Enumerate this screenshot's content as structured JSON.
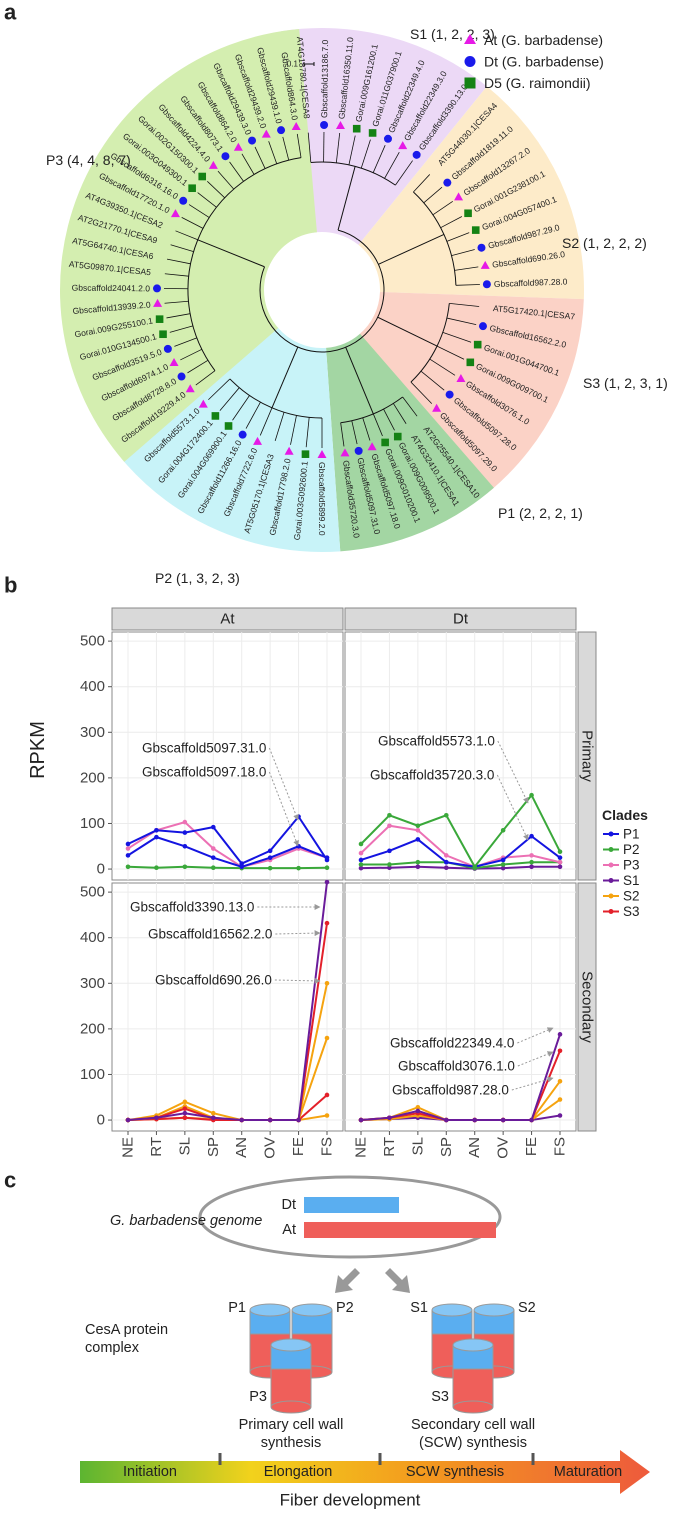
{
  "panel_labels": [
    "a",
    "b",
    "c"
  ],
  "tree": {
    "scale": "0.1",
    "legend": [
      {
        "label": "At (G. barbadense)",
        "color": "#e619e6",
        "shape": "triangle"
      },
      {
        "label": "Dt (G. barbadense)",
        "color": "#1a1aeb",
        "shape": "circle"
      },
      {
        "label": "D5 (G. raimondii)",
        "color": "#148214",
        "shape": "square"
      }
    ],
    "clades": [
      {
        "label": "S1 (1, 2, 2, 3)",
        "color": "#ecd9f6",
        "leaves": [
          "AT4G18780.1|CESA8",
          "Gbscaffold13186.7.0",
          "Gbscaffold16350.11.0",
          "Gorai.009G161200.1",
          "Gorai.011G037900.1",
          "Gbscaffold22349.4.0",
          "Gbscaffold22349.3.0",
          "Gbscaffold3390.13.0"
        ]
      },
      {
        "label": "S2 (1, 2, 2, 2)",
        "color": "#fdebc9",
        "leaves": [
          "AT5G44030.1|CESA4",
          "Gbscaffold1819.11.0",
          "Gbscaffold13267.2.0",
          "Gorai.001G238100.1",
          "Gorai.004G057400.1",
          "Gbscaffold987.29.0",
          "Gbscaffold690.26.0",
          "Gbscaffold987.28.0"
        ]
      },
      {
        "label": "S3 (1, 2, 3, 1)",
        "color": "#fbd2c6",
        "leaves": [
          "AT5G17420.1|CESA7",
          "Gbscaffold16562.2.0",
          "Gorai.001G044700.1",
          "Gorai.009G009700.1",
          "Gbscaffold3076.1.0",
          "Gbscaffold5097.28.0",
          "Gbscaffold5097.29.0"
        ]
      },
      {
        "label": "P1 (2, 2, 2, 1)",
        "color": "#a3d6a3",
        "leaves": [
          "AT2G25540.1|CESA10",
          "AT4G32410.1|CESA1",
          "Gorai.009G009500.1",
          "Gorai.009G010200.1",
          "Gbscaffold5097.18.0",
          "Gbscaffold5097.31.0",
          "Gbscaffold35720.3.0"
        ]
      },
      {
        "label": "P2 (1, 3, 2, 3)",
        "color": "#c8f3f8",
        "leaves": [
          "Gbscaffold5899.2.0",
          "Gorai.003G092600.1",
          "Gbscaffold17798.2.0",
          "AT5G05170.1|CESA3",
          "Gbscaffold7722.6.0",
          "Gbscaffold11266.16.0",
          "Gorai.004G069900.1",
          "Gorai.004G172400.1",
          "Gbscaffold5573.1.0"
        ]
      },
      {
        "label": "P3 (4, 4, 8, 7)",
        "color": "#d4eeb0",
        "leaves": [
          "Gbscaffold19229.4.0",
          "Gbscaffold8728.8.0",
          "Gbscaffold6974.1.0",
          "Gbscaffold3519.5.0",
          "Gorai.010G134500.1",
          "Gorai.009G255100.1",
          "Gbscaffold13939.2.0",
          "Gbscaffold24041.2.0",
          "AT5G09870.1|CESA5",
          "AT5G64740.1|CESA6",
          "AT2G21770.1|CESA9",
          "AT4G39350.1|CESA2",
          "Gbscaffold17720.1.0",
          "Gbscaffold6316.16.0",
          "Gorai.003G049300.1",
          "Gorai.002G150300.1",
          "Gbscaffold4224.4.0",
          "Gbscaffold8073.1",
          "Gbscaffold864.2.0",
          "Gbscaffold29439.3.0",
          "Gbscaffold29439.2.0",
          "Gbscaffold29439.1.0",
          "Gbscaffold864.3.0"
        ]
      }
    ]
  },
  "chart_data": {
    "type": "line",
    "y_label": "RPKM",
    "columns": [
      "At",
      "Dt"
    ],
    "rows": [
      "Primary",
      "Secondary"
    ],
    "categories": [
      "NE",
      "RT",
      "SL",
      "SP",
      "AN",
      "OV",
      "FE",
      "FS"
    ],
    "ylim": [
      -24,
      520
    ],
    "yticks": [
      0,
      100,
      200,
      300,
      400,
      500
    ],
    "grid": true,
    "legend": {
      "title": "Clades",
      "position": "right",
      "items": [
        {
          "name": "P1",
          "color": "#1414e0"
        },
        {
          "name": "P2",
          "color": "#3aa83a"
        },
        {
          "name": "P3",
          "color": "#ec70b4"
        },
        {
          "name": "S1",
          "color": "#6a1b9a"
        },
        {
          "name": "S2",
          "color": "#f5a30f"
        },
        {
          "name": "S3",
          "color": "#e3202a"
        }
      ]
    },
    "facets": [
      {
        "series": [
          {
            "color": "#3aa83a",
            "values": [
              5,
              3,
              5,
              3,
              2,
              2,
              2,
              3
            ]
          },
          {
            "color": "#ec70b4",
            "values": [
              45,
              85,
              103,
              45,
              5,
              20,
              45,
              25
            ]
          },
          {
            "color": "#1414e0",
            "values": [
              55,
              85,
              80,
              92,
              12,
              40,
              115,
              20
            ]
          },
          {
            "color": "#1414e0",
            "values": [
              30,
              70,
              50,
              25,
              5,
              25,
              50,
              25
            ]
          }
        ],
        "annotations": [
          "Gbscaffold5097.31.0",
          "Gbscaffold5097.18.0"
        ]
      },
      {
        "series": [
          {
            "color": "#6a1b9a",
            "values": [
              2,
              3,
              5,
              3,
              1,
              2,
              5,
              5
            ]
          },
          {
            "color": "#3aa83a",
            "values": [
              10,
              10,
              15,
              15,
              2,
              10,
              15,
              15
            ]
          },
          {
            "color": "#ec70b4",
            "values": [
              35,
              95,
              85,
              30,
              5,
              25,
              30,
              15
            ]
          },
          {
            "color": "#1414e0",
            "values": [
              20,
              40,
              65,
              15,
              5,
              20,
              72,
              25
            ]
          },
          {
            "color": "#3aa83a",
            "values": [
              55,
              118,
              95,
              118,
              5,
              85,
              162,
              38
            ]
          }
        ],
        "annotations": [
          "Gbscaffold5573.1.0",
          "Gbscaffold35720.3.0"
        ]
      },
      {
        "series": [
          {
            "color": "#f5a30f",
            "values": [
              0,
              2,
              5,
              2,
              0,
              0,
              0,
              10
            ]
          },
          {
            "color": "#e3202a",
            "values": [
              0,
              2,
              5,
              0,
              0,
              0,
              0,
              55
            ]
          },
          {
            "color": "#f5a30f",
            "values": [
              0,
              5,
              30,
              5,
              0,
              0,
              0,
              180
            ]
          },
          {
            "color": "#f5a30f",
            "values": [
              0,
              10,
              40,
              15,
              0,
              0,
              0,
              300
            ]
          },
          {
            "color": "#e3202a",
            "values": [
              0,
              5,
              25,
              3,
              0,
              0,
              0,
              432
            ]
          },
          {
            "color": "#6a1b9a",
            "values": [
              0,
              5,
              15,
              5,
              0,
              0,
              0,
              522
            ]
          }
        ],
        "annotations": [
          "Gbscaffold3390.13.0",
          "Gbscaffold16562.2.0",
          "Gbscaffold690.26.0"
        ]
      },
      {
        "series": [
          {
            "color": "#6a1b9a",
            "values": [
              0,
              2,
              5,
              0,
              0,
              0,
              0,
              10
            ]
          },
          {
            "color": "#f5a30f",
            "values": [
              0,
              2,
              10,
              0,
              0,
              0,
              0,
              45
            ]
          },
          {
            "color": "#f5a30f",
            "values": [
              0,
              5,
              28,
              0,
              0,
              0,
              0,
              85
            ]
          },
          {
            "color": "#e3202a",
            "values": [
              0,
              5,
              15,
              0,
              0,
              0,
              0,
              152
            ]
          },
          {
            "color": "#6a1b9a",
            "values": [
              0,
              5,
              20,
              0,
              0,
              0,
              0,
              188
            ]
          }
        ],
        "annotations": [
          "Gbscaffold22349.4.0",
          "Gbscaffold3076.1.0",
          "Gbscaffold987.28.0"
        ]
      }
    ]
  },
  "diagram": {
    "genome_label": "G. barbadense genome",
    "bars": [
      "Dt",
      "At"
    ],
    "protein_label": [
      "CesA protein",
      "complex"
    ],
    "primary": {
      "members": [
        "P1",
        "P2",
        "P3"
      ],
      "caption": [
        "Primary cell wall",
        "synthesis"
      ]
    },
    "secondary": {
      "members": [
        "S1",
        "S2",
        "S3"
      ],
      "caption": [
        "Secondary cell wall",
        "(SCW) synthesis"
      ]
    },
    "stages": [
      "Initiation",
      "Elongation",
      "SCW synthesis",
      "Maturation"
    ],
    "axis_label": "Fiber development"
  }
}
